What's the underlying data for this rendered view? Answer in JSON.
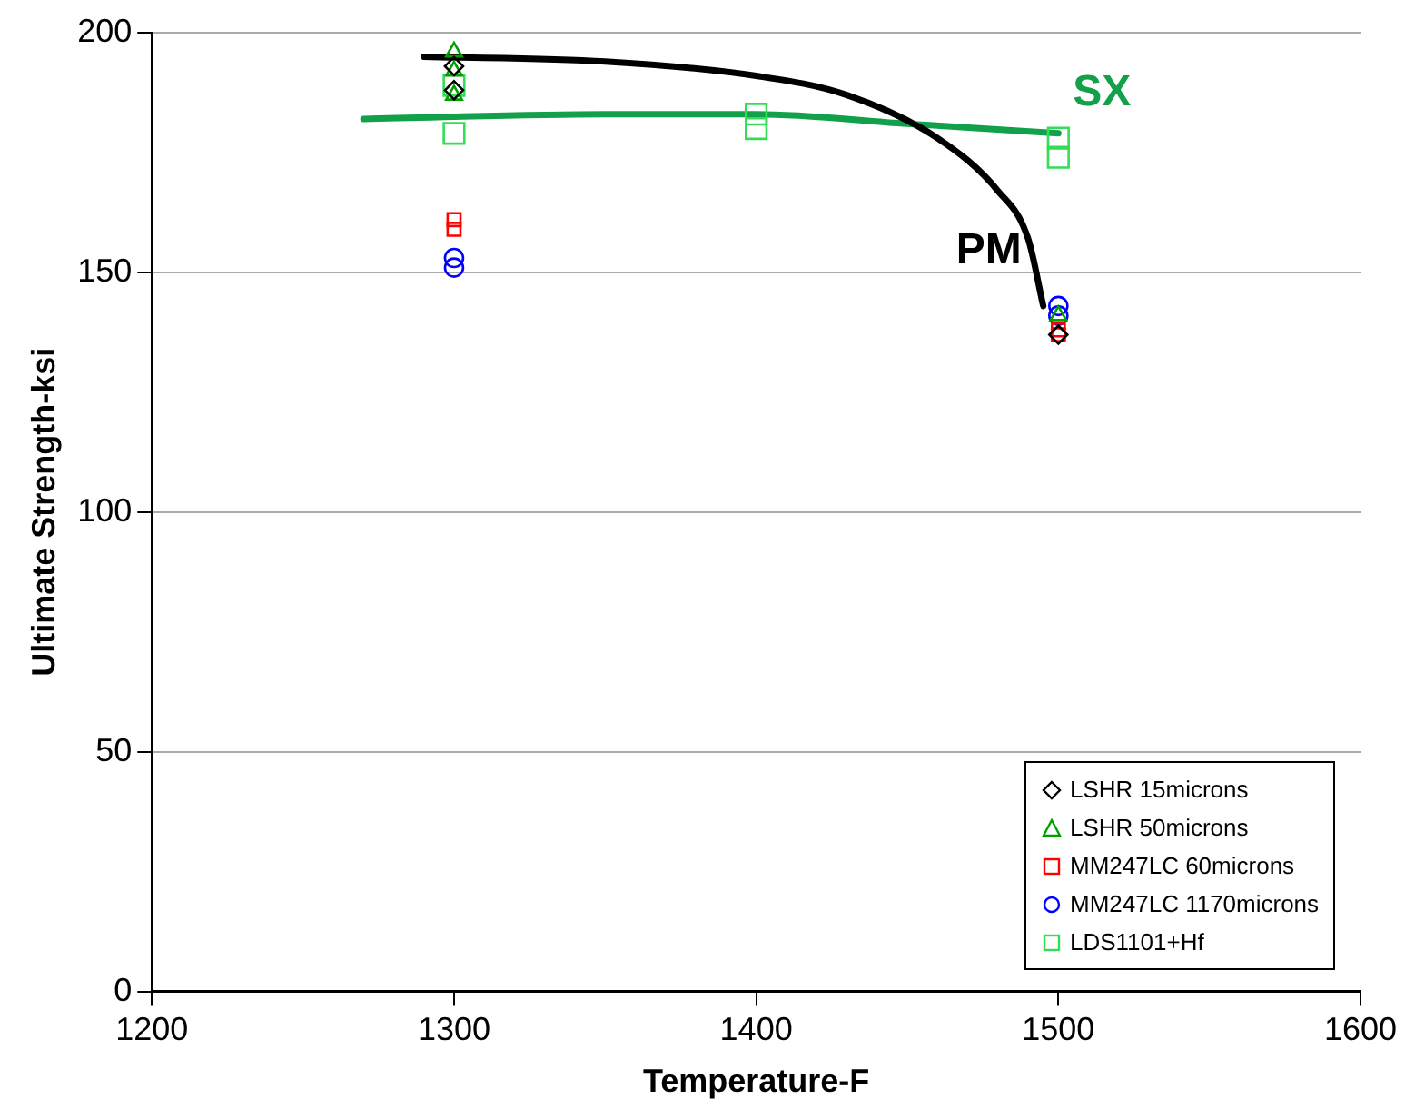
{
  "chart_data": {
    "type": "scatter",
    "xlabel": "Temperature-F",
    "ylabel": "Ultimate Strength-ksi",
    "xlim": [
      1200,
      1600
    ],
    "xticks": [
      1200,
      1300,
      1400,
      1500,
      1600
    ],
    "ylim": [
      0,
      200
    ],
    "yticks": [
      0,
      50,
      100,
      150,
      200
    ],
    "grid": "y",
    "legend": "bottom right",
    "series": [
      {
        "name": "LSHR 15microns",
        "color": "#000000",
        "marker": "diamond",
        "x": [
          1300,
          1300,
          1500
        ],
        "values": [
          193,
          188,
          137
        ]
      },
      {
        "name": "LSHR 50microns",
        "color": "#00a000",
        "marker": "triangle",
        "x": [
          1300,
          1300,
          1300,
          1500
        ],
        "values": [
          196,
          192,
          187,
          141
        ]
      },
      {
        "name": "MM247LC 60microns",
        "color": "#ff0000",
        "marker": "square",
        "x": [
          1300,
          1300,
          1500,
          1500
        ],
        "values": [
          161,
          159,
          138,
          137
        ]
      },
      {
        "name": "MM247LC 1170microns",
        "color": "#0000ff",
        "marker": "circle",
        "x": [
          1300,
          1300,
          1500,
          1500
        ],
        "values": [
          153,
          151,
          143,
          141
        ]
      },
      {
        "name": "LDS1101+Hf",
        "color": "#33dd55",
        "marker": "square",
        "x": [
          1300,
          1300,
          1400,
          1400,
          1500,
          1500
        ],
        "values": [
          189,
          179,
          183,
          180,
          178,
          174
        ]
      },
      {
        "type": "line",
        "name": "PM",
        "color": "#000000",
        "marker": "none",
        "x": [
          1290,
          1350,
          1400,
          1430,
          1460,
          1480,
          1490,
          1495
        ],
        "values": [
          195,
          194,
          191,
          187,
          178,
          167,
          157,
          143
        ]
      },
      {
        "type": "line",
        "name": "SX",
        "color": "#13a04a",
        "marker": "none",
        "x": [
          1270,
          1350,
          1400,
          1450,
          1500
        ],
        "values": [
          182,
          183,
          183,
          181,
          179
        ]
      }
    ]
  }
}
